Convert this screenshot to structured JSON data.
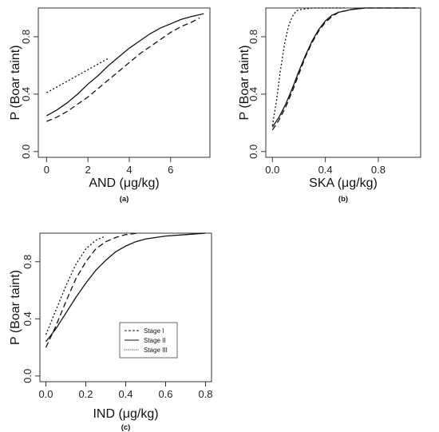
{
  "legend": {
    "entries": [
      {
        "label": "Stage I",
        "dash": "dashed"
      },
      {
        "label": "Stage II",
        "dash": "solid"
      },
      {
        "label": "Stage III",
        "dash": "dotted"
      }
    ]
  },
  "chart_data": [
    {
      "type": "line",
      "caption": "(a)",
      "xlabel": "AND (μg/kg)",
      "ylabel": "P (Boar taint)",
      "xlim": [
        -0.4,
        7.9
      ],
      "ylim": [
        -0.04,
        1.0
      ],
      "xticks": [
        0,
        2,
        4,
        6
      ],
      "yticks": [
        0.0,
        0.4,
        0.8
      ],
      "x_tick_labels": [
        "0",
        "2",
        "4",
        "6"
      ],
      "y_tick_labels": [
        "0.0",
        "0.4",
        "0.8"
      ],
      "grid": false,
      "series": [
        {
          "dash": "dashed",
          "x": [
            0,
            0.5,
            1,
            1.5,
            2,
            2.5,
            3,
            3.5,
            4,
            4.5,
            5,
            5.5,
            6,
            6.5,
            7,
            7.4
          ],
          "y": [
            0.21,
            0.24,
            0.28,
            0.33,
            0.38,
            0.44,
            0.5,
            0.56,
            0.62,
            0.68,
            0.73,
            0.78,
            0.83,
            0.87,
            0.9,
            0.93
          ]
        },
        {
          "dash": "solid",
          "x": [
            0,
            0.5,
            1,
            1.5,
            2,
            2.5,
            3,
            3.5,
            4,
            4.5,
            5,
            5.5,
            6,
            6.5,
            7,
            7.6
          ],
          "y": [
            0.25,
            0.29,
            0.34,
            0.4,
            0.47,
            0.53,
            0.6,
            0.66,
            0.72,
            0.77,
            0.82,
            0.86,
            0.89,
            0.92,
            0.94,
            0.96
          ]
        },
        {
          "dash": "dotted",
          "x": [
            0,
            0.5,
            1,
            1.5,
            2,
            2.5,
            3
          ],
          "y": [
            0.41,
            0.45,
            0.49,
            0.53,
            0.57,
            0.61,
            0.65
          ]
        }
      ]
    },
    {
      "type": "line",
      "caption": "(b)",
      "xlabel": "SKA (μg/kg)",
      "ylabel": "P (Boar taint)",
      "xlim": [
        -0.05,
        1.12
      ],
      "ylim": [
        -0.04,
        1.0
      ],
      "xticks": [
        0.0,
        0.4,
        0.8
      ],
      "yticks": [
        0.0,
        0.4,
        0.8
      ],
      "x_tick_labels": [
        "0.0",
        "0.4",
        "0.8"
      ],
      "y_tick_labels": [
        "0.0",
        "0.4",
        "0.8"
      ],
      "grid": false,
      "series": [
        {
          "dash": "dashed",
          "x": [
            0,
            0.05,
            0.1,
            0.15,
            0.2,
            0.25,
            0.3,
            0.35,
            0.4,
            0.45,
            0.5,
            0.55,
            0.6,
            0.7,
            0.8,
            0.9,
            1.0,
            1.08
          ],
          "y": [
            0.15,
            0.22,
            0.31,
            0.42,
            0.54,
            0.66,
            0.76,
            0.84,
            0.9,
            0.94,
            0.97,
            0.98,
            0.99,
            1.0,
            1.0,
            1.0,
            1.0,
            1.0
          ]
        },
        {
          "dash": "solid",
          "x": [
            0,
            0.05,
            0.1,
            0.15,
            0.2,
            0.25,
            0.3,
            0.35,
            0.4,
            0.45,
            0.5,
            0.55,
            0.6,
            0.7,
            0.8,
            0.9,
            1.0,
            1.08
          ],
          "y": [
            0.17,
            0.24,
            0.33,
            0.44,
            0.56,
            0.67,
            0.77,
            0.85,
            0.91,
            0.95,
            0.97,
            0.98,
            0.99,
            1.0,
            1.0,
            1.0,
            1.0,
            1.0
          ]
        },
        {
          "dash": "dotted",
          "x": [
            0,
            0.03,
            0.06,
            0.09,
            0.12,
            0.15,
            0.18,
            0.22,
            0.3,
            0.4,
            0.55
          ],
          "y": [
            0.18,
            0.35,
            0.56,
            0.74,
            0.87,
            0.94,
            0.98,
            0.99,
            1.0,
            1.0,
            1.0
          ]
        }
      ]
    },
    {
      "type": "line",
      "caption": "(c)",
      "xlabel": "IND (μg/kg)",
      "ylabel": "P (Boar taint)",
      "xlim": [
        -0.03,
        0.83
      ],
      "ylim": [
        -0.04,
        1.0
      ],
      "xticks": [
        0.0,
        0.2,
        0.4,
        0.6,
        0.8
      ],
      "yticks": [
        0.0,
        0.4,
        0.8
      ],
      "x_tick_labels": [
        "0.0",
        "0.2",
        "0.4",
        "0.6",
        "0.8"
      ],
      "y_tick_labels": [
        "0.0",
        "0.4",
        "0.8"
      ],
      "grid": false,
      "legend": "inside",
      "series": [
        {
          "dash": "dashed",
          "x": [
            0,
            0.05,
            0.1,
            0.15,
            0.2,
            0.25,
            0.3,
            0.35,
            0.4,
            0.46
          ],
          "y": [
            0.2,
            0.35,
            0.52,
            0.68,
            0.8,
            0.89,
            0.94,
            0.97,
            0.99,
            1.0
          ]
        },
        {
          "dash": "solid",
          "x": [
            0,
            0.05,
            0.1,
            0.15,
            0.2,
            0.25,
            0.3,
            0.35,
            0.4,
            0.45,
            0.5,
            0.6,
            0.7,
            0.8
          ],
          "y": [
            0.24,
            0.33,
            0.44,
            0.55,
            0.65,
            0.74,
            0.81,
            0.87,
            0.91,
            0.94,
            0.96,
            0.98,
            0.99,
            1.0
          ]
        },
        {
          "dash": "dotted",
          "x": [
            0,
            0.05,
            0.1,
            0.15,
            0.2,
            0.25,
            0.3
          ],
          "y": [
            0.29,
            0.46,
            0.63,
            0.78,
            0.89,
            0.95,
            0.98
          ]
        }
      ]
    }
  ]
}
